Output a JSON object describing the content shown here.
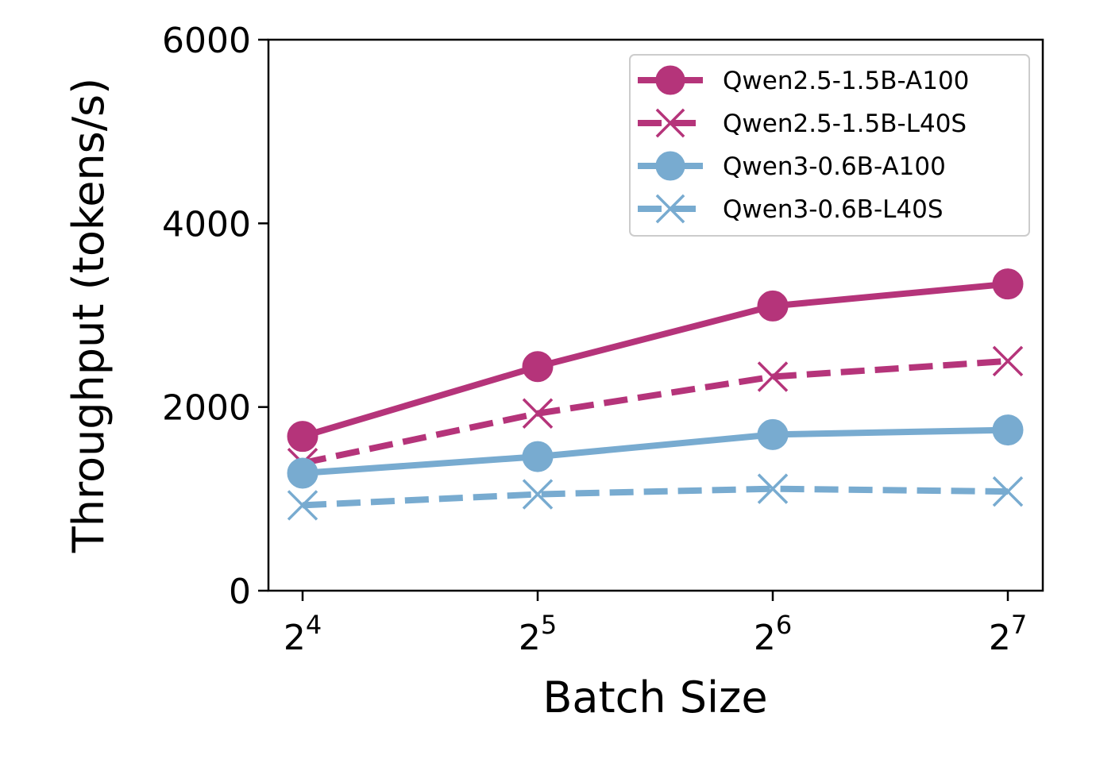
{
  "chart_data": {
    "type": "line",
    "title": "",
    "xlabel": "Batch Size",
    "ylabel": "Throughput (tokens/s)",
    "x_scale": "log2",
    "x": [
      16,
      32,
      64,
      128
    ],
    "x_tick_labels": [
      {
        "base": "2",
        "exp": "4"
      },
      {
        "base": "2",
        "exp": "5"
      },
      {
        "base": "2",
        "exp": "6"
      },
      {
        "base": "2",
        "exp": "7"
      }
    ],
    "ylim": [
      0,
      6000
    ],
    "y_ticks": [
      0,
      2000,
      4000,
      6000
    ],
    "y_tick_labels": [
      "0",
      "2000",
      "4000",
      "6000"
    ],
    "grid": false,
    "legend_position": "top-right",
    "series": [
      {
        "name": "Qwen2.5-1.5B-A100",
        "values": [
          1680,
          2440,
          3100,
          3340
        ],
        "color": "#b5347a",
        "linestyle": "solid",
        "marker": "circle"
      },
      {
        "name": "Qwen2.5-1.5B-L40S",
        "values": [
          1390,
          1930,
          2330,
          2500
        ],
        "color": "#b5347a",
        "linestyle": "dashed",
        "marker": "x"
      },
      {
        "name": "Qwen3-0.6B-A100",
        "values": [
          1280,
          1460,
          1700,
          1750
        ],
        "color": "#78abd0",
        "linestyle": "solid",
        "marker": "circle"
      },
      {
        "name": "Qwen3-0.6B-L40S",
        "values": [
          930,
          1050,
          1110,
          1080
        ],
        "color": "#78abd0",
        "linestyle": "dashed",
        "marker": "x"
      }
    ]
  }
}
